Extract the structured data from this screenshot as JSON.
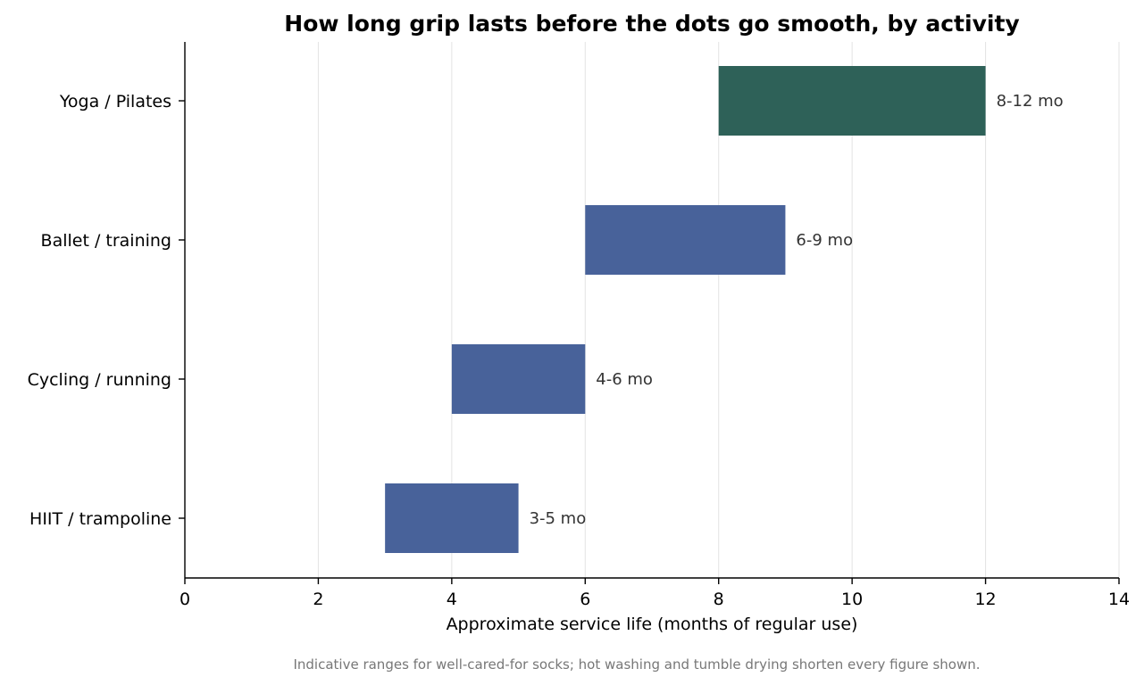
{
  "chart_data": {
    "type": "bar",
    "orientation": "horizontal",
    "title": "How long grip lasts before the dots go smooth, by activity",
    "xlabel": "Approximate service life (months of regular use)",
    "ylabel": "",
    "caption": "Indicative ranges for well-cared-for socks; hot washing and tumble drying shorten every figure shown.",
    "xlim": [
      0,
      14
    ],
    "xticks": [
      0,
      2,
      4,
      6,
      8,
      10,
      12,
      14
    ],
    "grid": "vertical",
    "categories": [
      "Yoga / Pilates",
      "Ballet / training",
      "Cycling / running",
      "HIIT / trampoline"
    ],
    "ranges": [
      {
        "category": "Yoga / Pilates",
        "start": 8,
        "end": 12,
        "label": "8-12 mo",
        "color": "#2e6158"
      },
      {
        "category": "Ballet / training",
        "start": 6,
        "end": 9,
        "label": "6-9 mo",
        "color": "#48629a"
      },
      {
        "category": "Cycling / running",
        "start": 4,
        "end": 6,
        "label": "4-6 mo",
        "color": "#48629a"
      },
      {
        "category": "HIIT / trampoline",
        "start": 3,
        "end": 5,
        "label": "3-5 mo",
        "color": "#48629a"
      }
    ]
  }
}
